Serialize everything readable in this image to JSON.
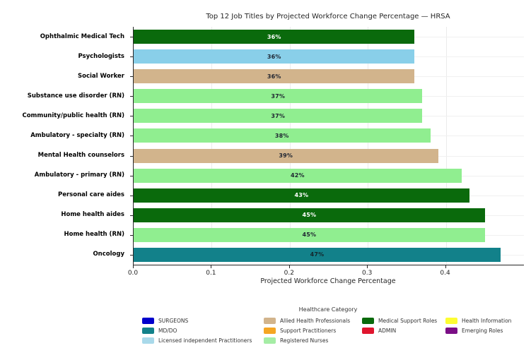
{
  "chart_data": {
    "type": "bar",
    "orientation": "horizontal",
    "title": "Top 12 Job Titles by Projected Workforce Change Percentage — HRSA",
    "xlabel": "Projected Workforce Change Percentage",
    "xlim": [
      0,
      0.5
    ],
    "xticks": [
      {
        "value": 0.0,
        "label": "0.0"
      },
      {
        "value": 0.1,
        "label": "0.1"
      },
      {
        "value": 0.2,
        "label": "0.2"
      },
      {
        "value": 0.3,
        "label": "0.3"
      },
      {
        "value": 0.4,
        "label": "0.4"
      }
    ],
    "grid": true,
    "bars": [
      {
        "category": "Ophthalmic Medical Tech",
        "value": 0.36,
        "display": "36%",
        "group": "Medical Support Roles",
        "color": "#0a6a0c",
        "label_color": "#ffffff"
      },
      {
        "category": "Psychologists",
        "value": 0.36,
        "display": "36%",
        "group": "Licensed independent Practitioners",
        "color": "#89cfe9",
        "label_color": "#1e2430"
      },
      {
        "category": "Social Worker",
        "value": 0.36,
        "display": "36%",
        "group": "Allied Health Professionals",
        "color": "#d2b48c",
        "label_color": "#1e2430"
      },
      {
        "category": "Substance use disorder (RN)",
        "value": 0.37,
        "display": "37%",
        "group": "Registered Nurses",
        "color": "#90ee90",
        "label_color": "#1e2430"
      },
      {
        "category": "Community/public health (RN)",
        "value": 0.37,
        "display": "37%",
        "group": "Registered Nurses",
        "color": "#90ee90",
        "label_color": "#1e2430"
      },
      {
        "category": "Ambulatory - specialty (RN)",
        "value": 0.38,
        "display": "38%",
        "group": "Registered Nurses",
        "color": "#90ee90",
        "label_color": "#1e2430"
      },
      {
        "category": "Mental Health counselors",
        "value": 0.39,
        "display": "39%",
        "group": "Allied Health Professionals",
        "color": "#d2b48c",
        "label_color": "#1e2430"
      },
      {
        "category": "Ambulatory - primary (RN)",
        "value": 0.42,
        "display": "42%",
        "group": "Registered Nurses",
        "color": "#90ee90",
        "label_color": "#1e2430"
      },
      {
        "category": "Personal care aides",
        "value": 0.43,
        "display": "43%",
        "group": "Medical Support Roles",
        "color": "#0a6a0c",
        "label_color": "#ffffff"
      },
      {
        "category": "Home health aides",
        "value": 0.45,
        "display": "45%",
        "group": "Medical Support Roles",
        "color": "#0a6a0c",
        "label_color": "#ffffff"
      },
      {
        "category": "Home health (RN)",
        "value": 0.45,
        "display": "45%",
        "group": "Registered Nurses",
        "color": "#90ee90",
        "label_color": "#1e2430"
      },
      {
        "category": "Oncology",
        "value": 0.47,
        "display": "47%",
        "group": "MD/DO",
        "color": "#12818a",
        "label_color": "#14262b"
      }
    ],
    "legend": {
      "title": "Healthcare Category",
      "position": "bottom",
      "columns": [
        [
          {
            "label": "SURGEONS",
            "color": "#0000cc"
          },
          {
            "label": "MD/DO",
            "color": "#12818a"
          },
          {
            "label": "Licensed independent Practitioners",
            "color": "#a9d9ea"
          }
        ],
        [
          {
            "label": "Allied Health Professionals",
            "color": "#d2b48c"
          },
          {
            "label": "Support Practitioners",
            "color": "#f5a623"
          },
          {
            "label": "Registered Nurses",
            "color": "#a5eda5"
          }
        ],
        [
          {
            "label": "Medical Support Roles",
            "color": "#0a6a0c"
          },
          {
            "label": "ADMIN",
            "color": "#e0152e"
          }
        ],
        [
          {
            "label": "Health Information",
            "color": "#fdfd32"
          },
          {
            "label": "Emerging Roles",
            "color": "#7b0e86"
          }
        ]
      ]
    }
  }
}
